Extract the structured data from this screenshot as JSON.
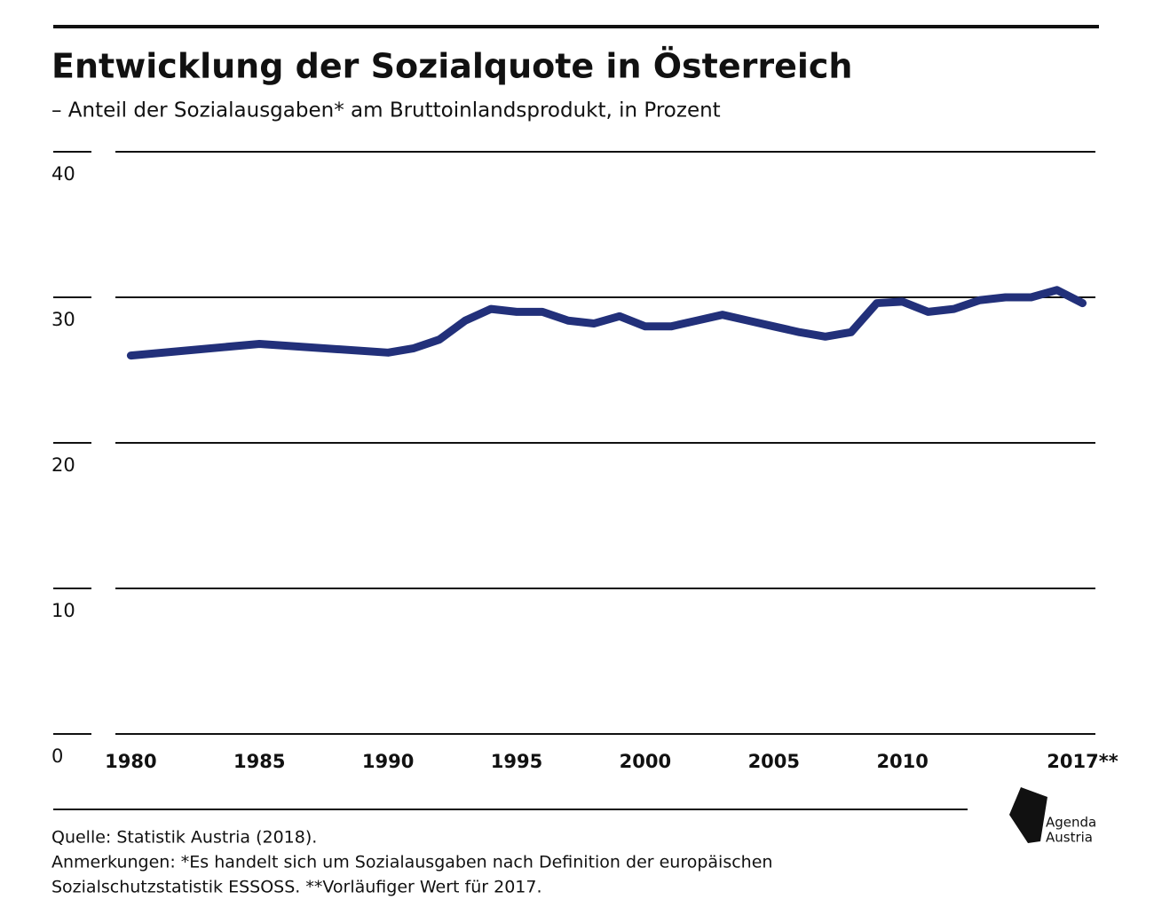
{
  "chart_data": {
    "type": "line",
    "title": "Entwicklung der Sozialquote in Österreich",
    "subtitle": "– Anteil der Sozialausgaben* am Bruttoinlandsprodukt, in Prozent",
    "x": [
      1980,
      1985,
      1990,
      1991,
      1992,
      1993,
      1994,
      1995,
      1996,
      1997,
      1998,
      1999,
      2000,
      2001,
      2002,
      2003,
      2004,
      2005,
      2006,
      2007,
      2008,
      2009,
      2010,
      2011,
      2012,
      2013,
      2014,
      2015,
      2016,
      2017
    ],
    "series": [
      {
        "color": "#22307a",
        "values": [
          26.0,
          26.8,
          26.2,
          26.5,
          27.1,
          28.4,
          29.2,
          29.0,
          29.0,
          28.4,
          28.2,
          28.7,
          28.0,
          28.0,
          28.4,
          28.8,
          28.4,
          28.0,
          27.6,
          27.3,
          27.6,
          29.6,
          29.7,
          29.0,
          29.2,
          29.8,
          30.0,
          30.0,
          30.5,
          29.6
        ]
      }
    ],
    "xlim": [
      1979.4,
      2017.5
    ],
    "xticks": [
      1980,
      1985,
      1990,
      1995,
      2000,
      2005,
      2010,
      {
        "value": 2017,
        "label": "2017**"
      }
    ],
    "ylim": [
      0,
      40
    ],
    "yticks": [
      0,
      10,
      20,
      30,
      40
    ],
    "grid": true,
    "source": "Quelle: Statistik Austria (2018).",
    "notes": [
      "Anmerkungen: *Es handelt sich um Sozialausgaben nach Definition der europäischen",
      "Sozialschutzstatistik ESSOSS.  **Vorläufiger Wert für 2017."
    ],
    "logo": [
      "Agenda",
      "Austria"
    ]
  }
}
